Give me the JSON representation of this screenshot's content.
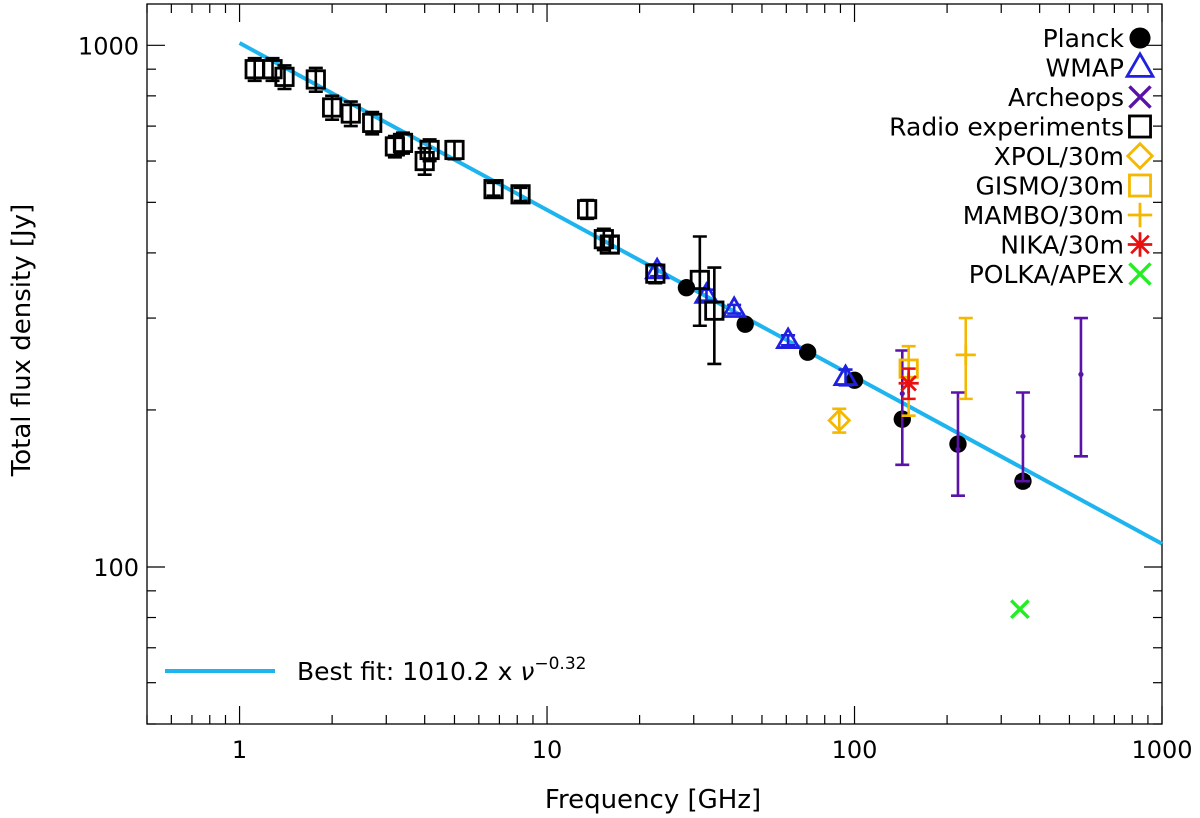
{
  "chart_data": {
    "type": "scatter",
    "title": "",
    "xlabel": "Frequency [GHz]",
    "ylabel": "Total flux density [Jy]",
    "xscale": "log",
    "yscale": "log",
    "xlim": [
      0.5,
      1000
    ],
    "ylim": [
      50,
      1200
    ],
    "x_tick_labels": [
      {
        "value": 1,
        "label": "1"
      },
      {
        "value": 10,
        "label": "10"
      },
      {
        "value": 100,
        "label": "100"
      },
      {
        "value": 1000,
        "label": "1000"
      }
    ],
    "y_tick_labels": [
      {
        "value": 100,
        "label": "100"
      },
      {
        "value": 1000,
        "label": "1000"
      }
    ],
    "legend_position": "top-right",
    "fit": {
      "amplitude": 1010.2,
      "index": -0.32,
      "label_prefix": "Best fit: 1010.2 x ",
      "label_symbol": "ν",
      "label_exponent": "−0.32",
      "color": "#1eb4ee",
      "x_range": [
        1,
        1000
      ],
      "legend_position": "bottom-left"
    },
    "series": [
      {
        "name": "Planck",
        "marker": "filled-circle",
        "color": "#000000",
        "points": [
          {
            "x": 28.4,
            "y": 343,
            "yerr": 5
          },
          {
            "x": 44.1,
            "y": 292,
            "yerr": 5
          },
          {
            "x": 70.4,
            "y": 258,
            "yerr": 4
          },
          {
            "x": 100,
            "y": 228,
            "yerr": 4
          },
          {
            "x": 143,
            "y": 192,
            "yerr": 3
          },
          {
            "x": 217,
            "y": 172,
            "yerr": 3
          },
          {
            "x": 353,
            "y": 146,
            "yerr": 3
          }
        ]
      },
      {
        "name": "WMAP",
        "marker": "triangle",
        "color": "#2020e0",
        "points": [
          {
            "x": 22.8,
            "y": 370,
            "yerr": 9
          },
          {
            "x": 33,
            "y": 332,
            "yerr": 8
          },
          {
            "x": 40.6,
            "y": 312,
            "yerr": 6
          },
          {
            "x": 60.8,
            "y": 272,
            "yerr": 6
          },
          {
            "x": 93.5,
            "y": 231,
            "yerr": 8
          }
        ]
      },
      {
        "name": "Archeops",
        "marker": "small-dot",
        "color": "#5a12a8",
        "points": [
          {
            "x": 143,
            "y": 215,
            "ylo": 157,
            "yhi": 260
          },
          {
            "x": 217,
            "y": 168,
            "ylo": 137,
            "yhi": 216
          },
          {
            "x": 353,
            "y": 178,
            "ylo": 146,
            "yhi": 216
          },
          {
            "x": 545,
            "y": 234,
            "ylo": 163,
            "yhi": 300
          }
        ]
      },
      {
        "name": "Radio experiments",
        "marker": "open-square",
        "color": "#000000",
        "points": [
          {
            "x": 1.12,
            "y": 900,
            "yerr": 45
          },
          {
            "x": 1.28,
            "y": 900,
            "yerr": 45
          },
          {
            "x": 1.4,
            "y": 870,
            "yerr": 45
          },
          {
            "x": 1.77,
            "y": 860,
            "yerr": 45
          },
          {
            "x": 2.0,
            "y": 760,
            "yerr": 40
          },
          {
            "x": 2.3,
            "y": 740,
            "yerr": 40
          },
          {
            "x": 2.7,
            "y": 710,
            "yerr": 35
          },
          {
            "x": 3.2,
            "y": 640,
            "yerr": 30
          },
          {
            "x": 3.4,
            "y": 650,
            "yerr": 30
          },
          {
            "x": 4.0,
            "y": 600,
            "yerr": 35
          },
          {
            "x": 4.15,
            "y": 630,
            "yerr": 30
          },
          {
            "x": 5.0,
            "y": 630,
            "yerr": 25
          },
          {
            "x": 6.7,
            "y": 530,
            "yerr": 15
          },
          {
            "x": 8.2,
            "y": 518,
            "yerr": 15
          },
          {
            "x": 13.5,
            "y": 485,
            "yerr": 20
          },
          {
            "x": 15.3,
            "y": 425,
            "yerr": 20
          },
          {
            "x": 16.0,
            "y": 415,
            "yerr": 15
          },
          {
            "x": 22.5,
            "y": 365,
            "yerr": 15
          },
          {
            "x": 31.4,
            "y": 355,
            "ylo": 290,
            "yhi": 430
          },
          {
            "x": 35,
            "y": 310,
            "ylo": 245,
            "yhi": 375
          }
        ]
      },
      {
        "name": "XPOL/30m",
        "marker": "open-diamond",
        "color": "#f5b800",
        "points": [
          {
            "x": 89.2,
            "y": 191,
            "yerr": 10
          }
        ]
      },
      {
        "name": "GISMO/30m",
        "marker": "open-square",
        "color": "#f5b800",
        "points": [
          {
            "x": 150,
            "y": 240,
            "ylo": 195,
            "yhi": 265
          }
        ]
      },
      {
        "name": "MAMBO/30m",
        "marker": "plus",
        "color": "#f5b800",
        "points": [
          {
            "x": 230,
            "y": 255,
            "ylo": 210,
            "yhi": 300
          }
        ]
      },
      {
        "name": "NIKA/30m",
        "marker": "asterisk",
        "color": "#e81010",
        "points": [
          {
            "x": 150,
            "y": 225,
            "yerr": 15
          }
        ]
      },
      {
        "name": "POLKA/APEX",
        "marker": "x",
        "color": "#22ee22",
        "points": [
          {
            "x": 345,
            "y": 83
          }
        ]
      }
    ]
  }
}
